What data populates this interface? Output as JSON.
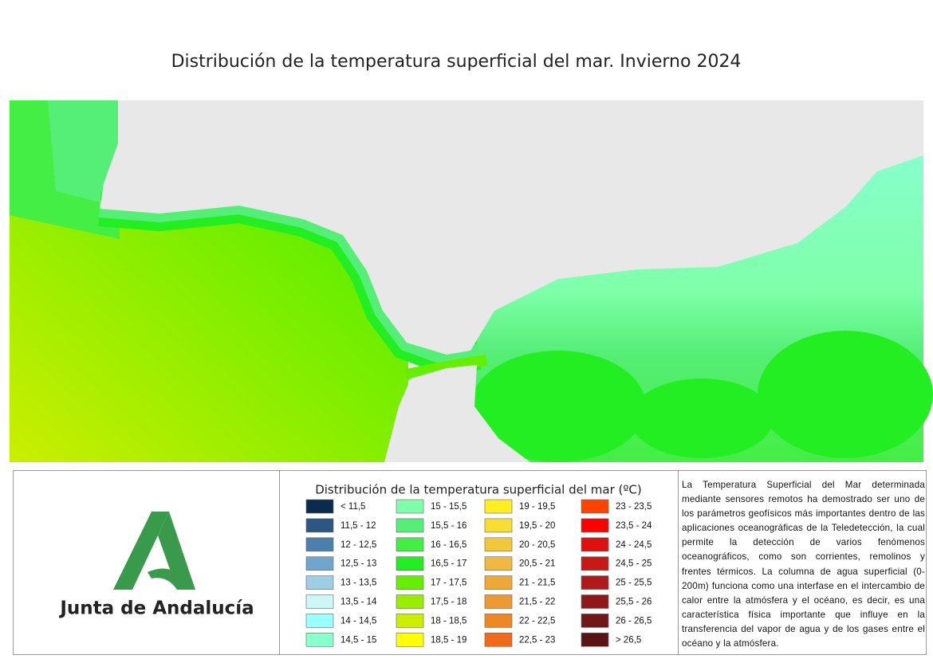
{
  "header": {
    "title": "Distribución de la temperatura superficial del mar. Invierno 2024"
  },
  "legend": {
    "title": "Distribución de la temperatura superficial del mar (ºC)",
    "items": [
      {
        "label": "< 11,5",
        "color": "#0b2b4c"
      },
      {
        "label": "11,5 - 12",
        "color": "#2b5782"
      },
      {
        "label": "12 - 12,5",
        "color": "#4b80ad"
      },
      {
        "label": "12,5 - 13",
        "color": "#70a5ce"
      },
      {
        "label": "13 - 13,5",
        "color": "#9ecde6"
      },
      {
        "label": "13,5 - 14",
        "color": "#cdf7f7"
      },
      {
        "label": "14 - 14,5",
        "color": "#99ffff"
      },
      {
        "label": "14,5 - 15",
        "color": "#88ffcc"
      },
      {
        "label": "15 - 15,5",
        "color": "#7fffaa"
      },
      {
        "label": "15,5 - 16",
        "color": "#55ee77"
      },
      {
        "label": "16 - 16,5",
        "color": "#44ee44"
      },
      {
        "label": "16,5 - 17",
        "color": "#22ee22"
      },
      {
        "label": "17 - 17,5",
        "color": "#66ee00"
      },
      {
        "label": "17,5 - 18",
        "color": "#99ee00"
      },
      {
        "label": "18 - 18,5",
        "color": "#ccee00"
      },
      {
        "label": "18,5 - 19",
        "color": "#ffff00"
      },
      {
        "label": "19 - 19,5",
        "color": "#ffee22"
      },
      {
        "label": "19,5 - 20",
        "color": "#f8dd33"
      },
      {
        "label": "20 - 20,5",
        "color": "#f2c83a"
      },
      {
        "label": "20,5 - 21",
        "color": "#f0b840"
      },
      {
        "label": "21 - 21,5",
        "color": "#eea838"
      },
      {
        "label": "21,5 - 22",
        "color": "#ee9933"
      },
      {
        "label": "22 - 22,5",
        "color": "#ee8822"
      },
      {
        "label": "22,5 - 23",
        "color": "#f06a1a"
      },
      {
        "label": "23 - 23,5",
        "color": "#ff4400"
      },
      {
        "label": "23,5 - 24",
        "color": "#ff0000"
      },
      {
        "label": "24 - 24,5",
        "color": "#e01010"
      },
      {
        "label": "24,5 - 25",
        "color": "#c81818"
      },
      {
        "label": "25 - 25,5",
        "color": "#b01a1a"
      },
      {
        "label": "25,5 - 26",
        "color": "#901818"
      },
      {
        "label": "26 - 26,5",
        "color": "#701818"
      },
      {
        "label": "> 26,5",
        "color": "#5a1414"
      }
    ]
  },
  "logo": {
    "text": "Junta de Andalucía"
  },
  "description": "La Temperatura Superficial del Mar determinada mediante sensores remotos ha demostrado ser uno de los parámetros geofísicos más importantes dentro de las aplicaciones oceanográficas de la Teledetección, la cual permite la detección de varios fenómenos oceanográficos, como son corrientes, remolinos y frentes térmicos. La columna de agua superficial (0-200m) funciona como una interfase en el intercambio de calor entre la atmósfera y el océano, es decir, es una característica física importante que influye en la transferencia del vapor de agua y de los gases entre el océano y la atmósfera."
}
